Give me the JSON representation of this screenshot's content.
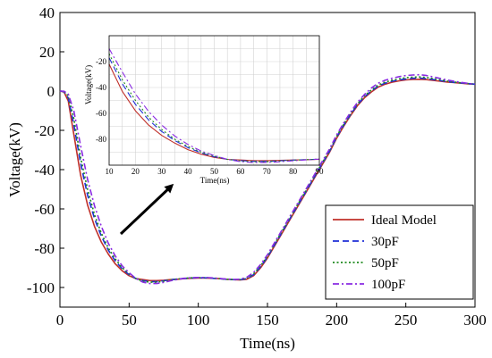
{
  "chart_data": [
    {
      "type": "line",
      "title": "",
      "xlabel": "Time(ns)",
      "ylabel": "Voltage(kV)",
      "xlim": [
        0,
        300
      ],
      "ylim": [
        -110,
        40
      ],
      "xticks": [
        0,
        50,
        100,
        150,
        200,
        250,
        300
      ],
      "yticks": [
        40,
        20,
        0,
        -20,
        -40,
        -60,
        -80,
        -100
      ],
      "grid": false,
      "legend_position": "bottom-right",
      "series": [
        {
          "name": "Ideal Model",
          "color": "#c0302a",
          "dash": "solid",
          "x": [
            0,
            3,
            6,
            10,
            15,
            20,
            25,
            30,
            35,
            40,
            45,
            50,
            55,
            60,
            65,
            70,
            75,
            80,
            85,
            90,
            95,
            100,
            105,
            110,
            115,
            120,
            125,
            130,
            135,
            140,
            145,
            150,
            155,
            160,
            165,
            170,
            175,
            180,
            185,
            190,
            195,
            200,
            205,
            210,
            215,
            220,
            225,
            230,
            235,
            240,
            245,
            250,
            255,
            260,
            265,
            270,
            275,
            280,
            285,
            290,
            295,
            300
          ],
          "y": [
            0,
            -0.5,
            -5,
            -22,
            -43,
            -58,
            -69,
            -77,
            -83,
            -88,
            -91.5,
            -94,
            -95.5,
            -96,
            -96.5,
            -96.5,
            -96.3,
            -96,
            -95.8,
            -95.5,
            -95.3,
            -95.2,
            -95.2,
            -95.3,
            -95.5,
            -95.8,
            -96,
            -96.2,
            -95.8,
            -94,
            -90,
            -85,
            -79,
            -73,
            -67,
            -61,
            -55,
            -49,
            -43,
            -37,
            -31,
            -24,
            -18,
            -12.5,
            -7.5,
            -3.5,
            -0.5,
            2,
            3.5,
            4.5,
            5.2,
            5.7,
            5.9,
            6,
            5.8,
            5.4,
            5,
            4.6,
            4.3,
            4,
            3.7,
            3.5
          ]
        },
        {
          "name": "30pF",
          "color": "#1f2fd6",
          "dash": "dashed",
          "x": [
            0,
            3,
            6,
            10,
            15,
            20,
            25,
            30,
            35,
            40,
            45,
            50,
            55,
            60,
            65,
            70,
            75,
            80,
            85,
            90,
            95,
            100,
            105,
            110,
            115,
            120,
            125,
            130,
            135,
            140,
            145,
            150,
            155,
            160,
            165,
            170,
            175,
            180,
            185,
            190,
            195,
            200,
            205,
            210,
            215,
            220,
            225,
            230,
            235,
            240,
            245,
            250,
            255,
            260,
            265,
            270,
            275,
            280,
            285,
            290,
            295,
            300
          ],
          "y": [
            0,
            -0.3,
            -3.5,
            -17,
            -37,
            -53,
            -65,
            -74,
            -81,
            -86.5,
            -90.5,
            -93.5,
            -95.5,
            -96.5,
            -97,
            -97,
            -96.6,
            -96.1,
            -95.7,
            -95.4,
            -95.2,
            -95.1,
            -95.1,
            -95.3,
            -95.5,
            -95.8,
            -96,
            -96.1,
            -95.5,
            -93.5,
            -89.5,
            -84.5,
            -78.5,
            -72.5,
            -66.5,
            -60.5,
            -54.5,
            -48.5,
            -42.5,
            -36.5,
            -30.5,
            -23.5,
            -17.5,
            -12,
            -7,
            -3,
            0,
            2.5,
            4,
            5,
            5.7,
            6.2,
            6.5,
            6.6,
            6.3,
            5.8,
            5.3,
            4.8,
            4.4,
            4.1,
            3.8,
            3.5
          ]
        },
        {
          "name": "50pF",
          "color": "#1e8a1e",
          "dash": "dotted",
          "x": [
            0,
            3,
            6,
            10,
            15,
            20,
            25,
            30,
            35,
            40,
            45,
            50,
            55,
            60,
            65,
            70,
            75,
            80,
            85,
            90,
            95,
            100,
            105,
            110,
            115,
            120,
            125,
            130,
            135,
            140,
            145,
            150,
            155,
            160,
            165,
            170,
            175,
            180,
            185,
            190,
            195,
            200,
            205,
            210,
            215,
            220,
            225,
            230,
            235,
            240,
            245,
            250,
            255,
            260,
            265,
            270,
            275,
            280,
            285,
            290,
            295,
            300
          ],
          "y": [
            0,
            -0.2,
            -2.5,
            -14,
            -34,
            -50,
            -63,
            -72.5,
            -80,
            -85.5,
            -90,
            -93,
            -95.5,
            -96.8,
            -97.3,
            -97.3,
            -96.8,
            -96.2,
            -95.7,
            -95.3,
            -95.1,
            -95,
            -95,
            -95.2,
            -95.5,
            -95.8,
            -96,
            -96,
            -95.2,
            -93,
            -89,
            -84,
            -78,
            -72,
            -66,
            -60,
            -54,
            -48,
            -42,
            -36,
            -30,
            -23,
            -17,
            -11.5,
            -6.5,
            -2.5,
            0.5,
            3,
            4.5,
            5.5,
            6.2,
            6.8,
            7.1,
            7.2,
            6.9,
            6.3,
            5.7,
            5.1,
            4.6,
            4.2,
            3.8,
            3.5
          ]
        },
        {
          "name": "100pF",
          "color": "#8a2be2",
          "dash": "dashdot",
          "x": [
            0,
            3,
            6,
            10,
            15,
            20,
            25,
            30,
            35,
            40,
            45,
            50,
            55,
            60,
            65,
            70,
            75,
            80,
            85,
            90,
            95,
            100,
            105,
            110,
            115,
            120,
            125,
            130,
            135,
            140,
            145,
            150,
            155,
            160,
            165,
            170,
            175,
            180,
            185,
            190,
            195,
            200,
            205,
            210,
            215,
            220,
            225,
            230,
            235,
            240,
            245,
            250,
            255,
            260,
            265,
            270,
            275,
            280,
            285,
            290,
            295,
            300
          ],
          "y": [
            0,
            -0.1,
            -1.5,
            -10,
            -28,
            -45,
            -58.5,
            -69,
            -77.5,
            -84,
            -89,
            -92.5,
            -95.5,
            -97.3,
            -98,
            -98,
            -97.4,
            -96.6,
            -95.9,
            -95.3,
            -95,
            -94.9,
            -94.9,
            -95.1,
            -95.4,
            -95.7,
            -95.9,
            -95.8,
            -94.8,
            -92.3,
            -88.3,
            -83.3,
            -77.3,
            -71.3,
            -65.3,
            -59.3,
            -53.3,
            -47.3,
            -41.3,
            -35.3,
            -29.3,
            -22.3,
            -16.3,
            -10.8,
            -5.8,
            -1.8,
            1.5,
            4,
            5.5,
            6.5,
            7.3,
            7.9,
            8.2,
            8.3,
            7.9,
            7.2,
            6.4,
            5.6,
            5,
            4.4,
            3.9,
            3.5
          ]
        }
      ]
    },
    {
      "type": "line",
      "title": "",
      "xlabel": "Time(ns)",
      "ylabel": "Voltage(kV)",
      "xlim": [
        10,
        90
      ],
      "ylim": [
        -100,
        0
      ],
      "xticks": [
        10,
        20,
        30,
        40,
        50,
        60,
        70,
        80,
        90
      ],
      "yticks": [
        -20,
        -40,
        -60,
        -80
      ],
      "grid": true,
      "legend_position": "none",
      "series": [
        {
          "name": "Ideal Model",
          "color": "#c0302a",
          "dash": "solid",
          "x": [
            10,
            15,
            20,
            25,
            30,
            35,
            40,
            45,
            50,
            55,
            60,
            65,
            70,
            75,
            80,
            85,
            90
          ],
          "y": [
            -22,
            -43,
            -58,
            -69,
            -77,
            -83,
            -88,
            -91.5,
            -94,
            -95.5,
            -96,
            -96.5,
            -96.5,
            -96.3,
            -96,
            -95.8,
            -95.5
          ]
        },
        {
          "name": "30pF",
          "color": "#1f2fd6",
          "dash": "dashed",
          "x": [
            10,
            15,
            20,
            25,
            30,
            35,
            40,
            45,
            50,
            55,
            60,
            65,
            70,
            75,
            80,
            85,
            90
          ],
          "y": [
            -17,
            -37,
            -53,
            -65,
            -74,
            -81,
            -86.5,
            -90.5,
            -93.5,
            -95.5,
            -96.5,
            -97,
            -97,
            -96.6,
            -96.1,
            -95.7,
            -95.4
          ]
        },
        {
          "name": "50pF",
          "color": "#1e8a1e",
          "dash": "dotted",
          "x": [
            10,
            15,
            20,
            25,
            30,
            35,
            40,
            45,
            50,
            55,
            60,
            65,
            70,
            75,
            80,
            85,
            90
          ],
          "y": [
            -14,
            -34,
            -50,
            -63,
            -72.5,
            -80,
            -85.5,
            -90,
            -93,
            -95.5,
            -96.8,
            -97.3,
            -97.3,
            -96.8,
            -96.2,
            -95.7,
            -95.3
          ]
        },
        {
          "name": "100pF",
          "color": "#8a2be2",
          "dash": "dashdot",
          "x": [
            10,
            15,
            20,
            25,
            30,
            35,
            40,
            45,
            50,
            55,
            60,
            65,
            70,
            75,
            80,
            85,
            90
          ],
          "y": [
            -10,
            -28,
            -45,
            -58.5,
            -69,
            -77.5,
            -84,
            -89,
            -92.5,
            -95.5,
            -97.3,
            -98,
            -98,
            -97.4,
            -96.6,
            -95.9,
            -95.3
          ]
        }
      ]
    }
  ]
}
